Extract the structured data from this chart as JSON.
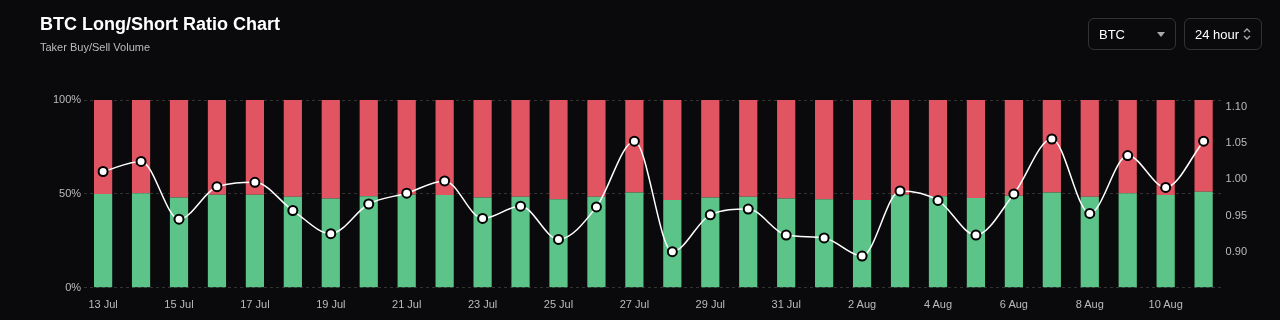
{
  "chart_data": {
    "type": "bar",
    "title": "BTC Long/Short Ratio Chart",
    "subtitle": "Taker Buy/Sell Volume",
    "annotations": [
      "BTC",
      "24 hour"
    ],
    "categories": [
      "13 Jul",
      null,
      "15 Jul",
      null,
      "17 Jul",
      null,
      "19 Jul",
      null,
      "21 Jul",
      null,
      "23 Jul",
      null,
      "25 Jul",
      null,
      "27 Jul",
      null,
      "29 Jul",
      null,
      "31 Jul",
      null,
      "2 Aug",
      null,
      "4 Aug",
      null,
      "6 Aug",
      null,
      "8 Aug",
      null,
      "10 Aug",
      null
    ],
    "stacked": true,
    "series": [
      {
        "color": "#5cc488",
        "values": [
          49.9,
          50.4,
          48.1,
          49.6,
          49.6,
          48.5,
          47.6,
          48.7,
          49.6,
          49.4,
          48.1,
          48.5,
          47.2,
          48.5,
          50.8,
          46.7,
          48.1,
          48.5,
          47.6,
          47.2,
          46.7,
          49.6,
          48.8,
          47.8,
          49.0,
          50.8,
          48.5,
          50.4,
          49.4,
          51.1
        ]
      },
      {
        "color": "#e15562",
        "values": [
          50.1,
          49.6,
          51.9,
          50.4,
          50.4,
          51.5,
          52.4,
          51.3,
          50.4,
          50.6,
          51.9,
          51.5,
          52.8,
          51.5,
          49.2,
          53.3,
          51.9,
          51.5,
          52.4,
          52.8,
          53.3,
          50.4,
          51.2,
          52.2,
          51.0,
          49.2,
          51.5,
          49.6,
          50.6,
          48.9
        ]
      },
      {
        "type": "line",
        "axis": "y2",
        "color": "#ffffff",
        "marker": "circle",
        "values": [
          1.011,
          1.025,
          0.945,
          0.99,
          0.996,
          0.957,
          0.925,
          0.966,
          0.981,
          0.998,
          0.946,
          0.963,
          0.917,
          0.962,
          1.053,
          0.9,
          0.951,
          0.959,
          0.923,
          0.919,
          0.894,
          0.984,
          0.971,
          0.923,
          0.98,
          1.056,
          0.953,
          1.033,
          0.989,
          1.053
        ]
      }
    ],
    "ylim": [
      0,
      100
    ],
    "yticks": [
      {
        "value": 0,
        "label": "0%"
      },
      {
        "value": 50,
        "label": "50%"
      },
      {
        "value": 100,
        "label": "100%"
      }
    ],
    "y2lim": [
      0.85,
      1.11
    ],
    "y2ticks": [
      {
        "value": 0.9,
        "label": "0.90"
      },
      0.95,
      {
        "value": 1,
        "label": "1.00"
      },
      1.05,
      {
        "value": 1.1,
        "label": "1.10"
      }
    ],
    "grid": "y",
    "legend": false
  }
}
